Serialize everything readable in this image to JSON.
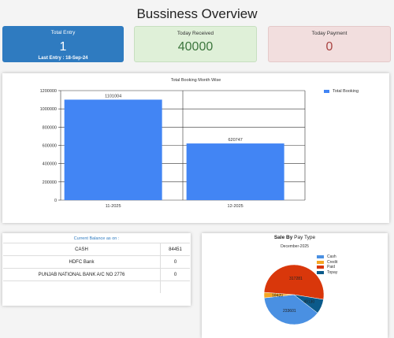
{
  "page_title": "Bussiness Overview",
  "cards": {
    "total_entry": {
      "label": "Total Entry",
      "value": "1",
      "sub": "Last Entry : 18-Sep-24"
    },
    "today_received": {
      "label": "Today Received",
      "value": "40000"
    },
    "today_payment": {
      "label": "Today Payment",
      "value": "0"
    }
  },
  "booking_chart": {
    "legend": "Total Booking",
    "color": "#4285f4",
    "chart_data": {
      "type": "bar",
      "title": "Total Booking Month Wise",
      "categories": [
        "11-2025",
        "12-2025"
      ],
      "series": [
        {
          "name": "Total Booking",
          "values": [
            1101004,
            620747
          ]
        }
      ],
      "data_labels": [
        "1101004",
        "620747"
      ],
      "ylim": [
        0,
        1200000
      ],
      "yticks": [
        "0",
        "200000",
        "400000",
        "600000",
        "800000",
        "1000000",
        "1200000"
      ],
      "grid": true,
      "legend_position": "top-right"
    }
  },
  "balance": {
    "title": "Current Balance as on :",
    "rows": [
      {
        "name": "CASH",
        "amount": "84451"
      },
      {
        "name": "HDFC Bank",
        "amount": "0"
      },
      {
        "name": "PUNJAB NATIONAL BANK A/C NO 2776",
        "amount": "0"
      },
      {
        "name": "",
        "amount": ""
      }
    ]
  },
  "sale_pie": {
    "title_bold": "Sale By",
    "title_rest": "Pay Type",
    "chart_data": {
      "type": "pie",
      "subtitle": "December-2025",
      "labels": [
        "Cash",
        "Credit",
        "Paid",
        "Topay"
      ],
      "values": [
        233601,
        18420,
        317281,
        49130
      ],
      "value_labels": [
        "233601",
        "18420",
        "317281",
        "49130"
      ],
      "colors": [
        "#4a90e2",
        "#f5a623",
        "#d9370b",
        "#0b5a8a"
      ],
      "legend_position": "right"
    }
  }
}
